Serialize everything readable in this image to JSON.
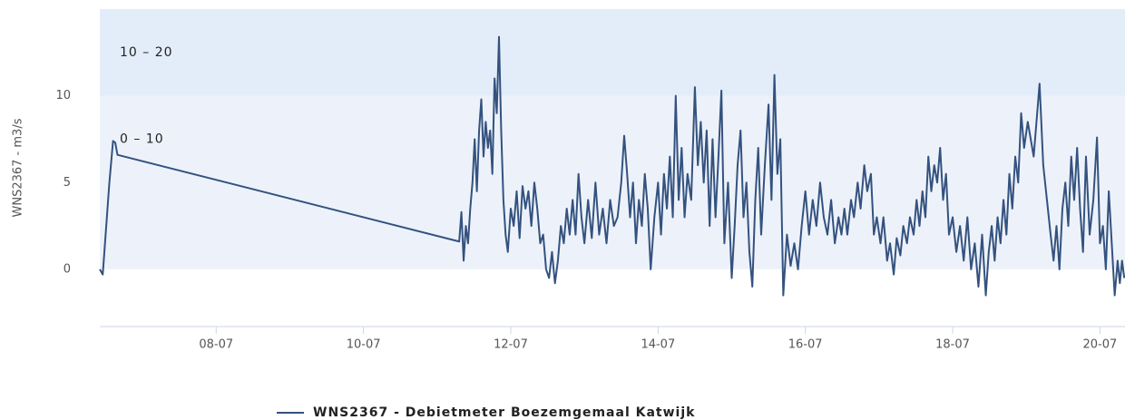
{
  "chart_data": {
    "type": "line",
    "y_label": "WNS2367 - m3/s",
    "xlim": [
      6.42,
      20.34
    ],
    "ylim": [
      -3.3,
      15
    ],
    "xticks": [
      {
        "value": 8,
        "label": "08-07"
      },
      {
        "value": 10,
        "label": "10-07"
      },
      {
        "value": 12,
        "label": "12-07"
      },
      {
        "value": 14,
        "label": "14-07"
      },
      {
        "value": 16,
        "label": "16-07"
      },
      {
        "value": 18,
        "label": "18-07"
      },
      {
        "value": 20,
        "label": "20-07"
      }
    ],
    "yticks": [
      0,
      5,
      10
    ],
    "bands": [
      {
        "from": 0,
        "to": 10,
        "label": "0 – 10",
        "color": "#edf2fa"
      },
      {
        "from": 10,
        "to": 20,
        "label": "10 – 20",
        "color": "#e2edf9"
      }
    ],
    "x": [
      6.42,
      6.46,
      6.55,
      6.6,
      6.63,
      6.66,
      11.3,
      11.33,
      11.36,
      11.39,
      11.42,
      11.45,
      11.48,
      11.51,
      11.54,
      11.57,
      11.6,
      11.63,
      11.66,
      11.69,
      11.72,
      11.75,
      11.78,
      11.81,
      11.84,
      11.87,
      11.9,
      11.93,
      11.96,
      12.0,
      12.04,
      12.08,
      12.12,
      12.16,
      12.2,
      12.24,
      12.28,
      12.32,
      12.36,
      12.4,
      12.44,
      12.48,
      12.52,
      12.56,
      12.6,
      12.64,
      12.68,
      12.72,
      12.76,
      12.8,
      12.84,
      12.88,
      12.92,
      12.96,
      13.0,
      13.05,
      13.1,
      13.15,
      13.2,
      13.25,
      13.3,
      13.35,
      13.4,
      13.45,
      13.5,
      13.54,
      13.58,
      13.62,
      13.66,
      13.7,
      13.74,
      13.78,
      13.82,
      13.86,
      13.9,
      13.95,
      14.0,
      14.04,
      14.08,
      14.12,
      14.16,
      14.2,
      14.24,
      14.28,
      14.32,
      14.36,
      14.4,
      14.45,
      14.5,
      14.54,
      14.58,
      14.62,
      14.66,
      14.7,
      14.74,
      14.78,
      14.82,
      14.86,
      14.9,
      14.95,
      15.0,
      15.04,
      15.08,
      15.12,
      15.16,
      15.2,
      15.24,
      15.28,
      15.32,
      15.36,
      15.4,
      15.45,
      15.5,
      15.54,
      15.58,
      15.62,
      15.66,
      15.7,
      15.75,
      15.8,
      15.85,
      15.9,
      15.95,
      16.0,
      16.05,
      16.1,
      16.15,
      16.2,
      16.25,
      16.3,
      16.35,
      16.4,
      16.45,
      16.49,
      16.53,
      16.57,
      16.62,
      16.66,
      16.71,
      16.75,
      16.8,
      16.84,
      16.89,
      16.93,
      16.97,
      17.02,
      17.06,
      17.11,
      17.15,
      17.2,
      17.24,
      17.29,
      17.33,
      17.38,
      17.42,
      17.47,
      17.51,
      17.55,
      17.59,
      17.63,
      17.67,
      17.71,
      17.75,
      17.79,
      17.83,
      17.87,
      17.91,
      17.95,
      18.0,
      18.05,
      18.1,
      18.15,
      18.2,
      18.25,
      18.3,
      18.35,
      18.4,
      18.45,
      18.49,
      18.53,
      18.57,
      18.61,
      18.65,
      18.69,
      18.73,
      18.77,
      18.81,
      18.85,
      18.89,
      18.93,
      18.97,
      19.02,
      19.1,
      19.18,
      19.23,
      19.28,
      19.33,
      19.37,
      19.41,
      19.45,
      19.49,
      19.53,
      19.57,
      19.61,
      19.65,
      19.69,
      19.73,
      19.77,
      19.81,
      19.86,
      19.91,
      19.96,
      20.0,
      20.04,
      20.08,
      20.12,
      20.16,
      20.2,
      20.24,
      20.27,
      20.3,
      20.33
    ],
    "series": [
      {
        "name": "WNS2367 - Debietmeter Boezemgemaal Katwijk",
        "color": "#34527f",
        "values": [
          0,
          -0.3,
          5,
          7.4,
          7.3,
          6.6,
          1.6,
          3.3,
          0.5,
          2.5,
          1.5,
          3.5,
          5,
          7.5,
          4.5,
          8,
          9.8,
          6.5,
          8.5,
          7,
          8,
          5.5,
          11,
          9,
          13.4,
          8,
          4,
          2,
          1,
          3.5,
          2.5,
          4.5,
          1.8,
          4.8,
          3.5,
          4.5,
          2.5,
          5,
          3.5,
          1.5,
          2,
          0,
          -0.5,
          1,
          -0.8,
          0.5,
          2.5,
          1.5,
          3.5,
          2,
          4,
          2,
          5.5,
          3,
          1.5,
          4,
          1.8,
          5,
          2,
          3.5,
          1.5,
          4,
          2.5,
          3,
          5,
          7.7,
          5.5,
          3,
          5,
          1.5,
          4,
          2.5,
          5.5,
          3.5,
          0,
          3,
          5,
          2,
          5.5,
          3.5,
          6.5,
          3,
          10,
          4,
          7,
          3,
          5.5,
          4,
          10.5,
          6,
          8.5,
          5,
          8,
          2.5,
          7.5,
          3,
          6.5,
          10.3,
          1.5,
          5,
          -0.5,
          2.5,
          6,
          8,
          3,
          5,
          1,
          -1,
          4,
          7,
          2,
          6,
          9.5,
          4,
          11.2,
          5.5,
          7.5,
          -1.5,
          2,
          0.2,
          1.5,
          0,
          2.5,
          4.5,
          2,
          4,
          2.5,
          5,
          3,
          2,
          4,
          1.5,
          3,
          2,
          3.5,
          2,
          4,
          3,
          5,
          3.5,
          6,
          4.5,
          5.5,
          2,
          3,
          1.5,
          3,
          0.5,
          1.5,
          -0.3,
          1.8,
          0.8,
          2.5,
          1.5,
          3,
          2,
          4,
          2.5,
          4.5,
          3,
          6.5,
          4.5,
          6,
          5,
          7,
          4,
          5.5,
          2,
          3,
          1,
          2.5,
          0.5,
          3,
          0,
          1.5,
          -1,
          2,
          -1.5,
          1,
          2.5,
          0.5,
          3,
          1.5,
          4,
          2,
          5.5,
          3.5,
          6.5,
          5,
          9,
          7,
          8.5,
          6.5,
          10.7,
          6,
          4,
          2,
          0.5,
          2.5,
          0,
          3.5,
          5,
          2.5,
          6.5,
          4,
          7,
          3.5,
          1,
          6.5,
          2,
          4,
          7.6,
          1.5,
          2.5,
          0,
          4.5,
          1.5,
          -1.5,
          0.5,
          -0.8,
          0.5,
          -0.5
        ]
      }
    ]
  }
}
